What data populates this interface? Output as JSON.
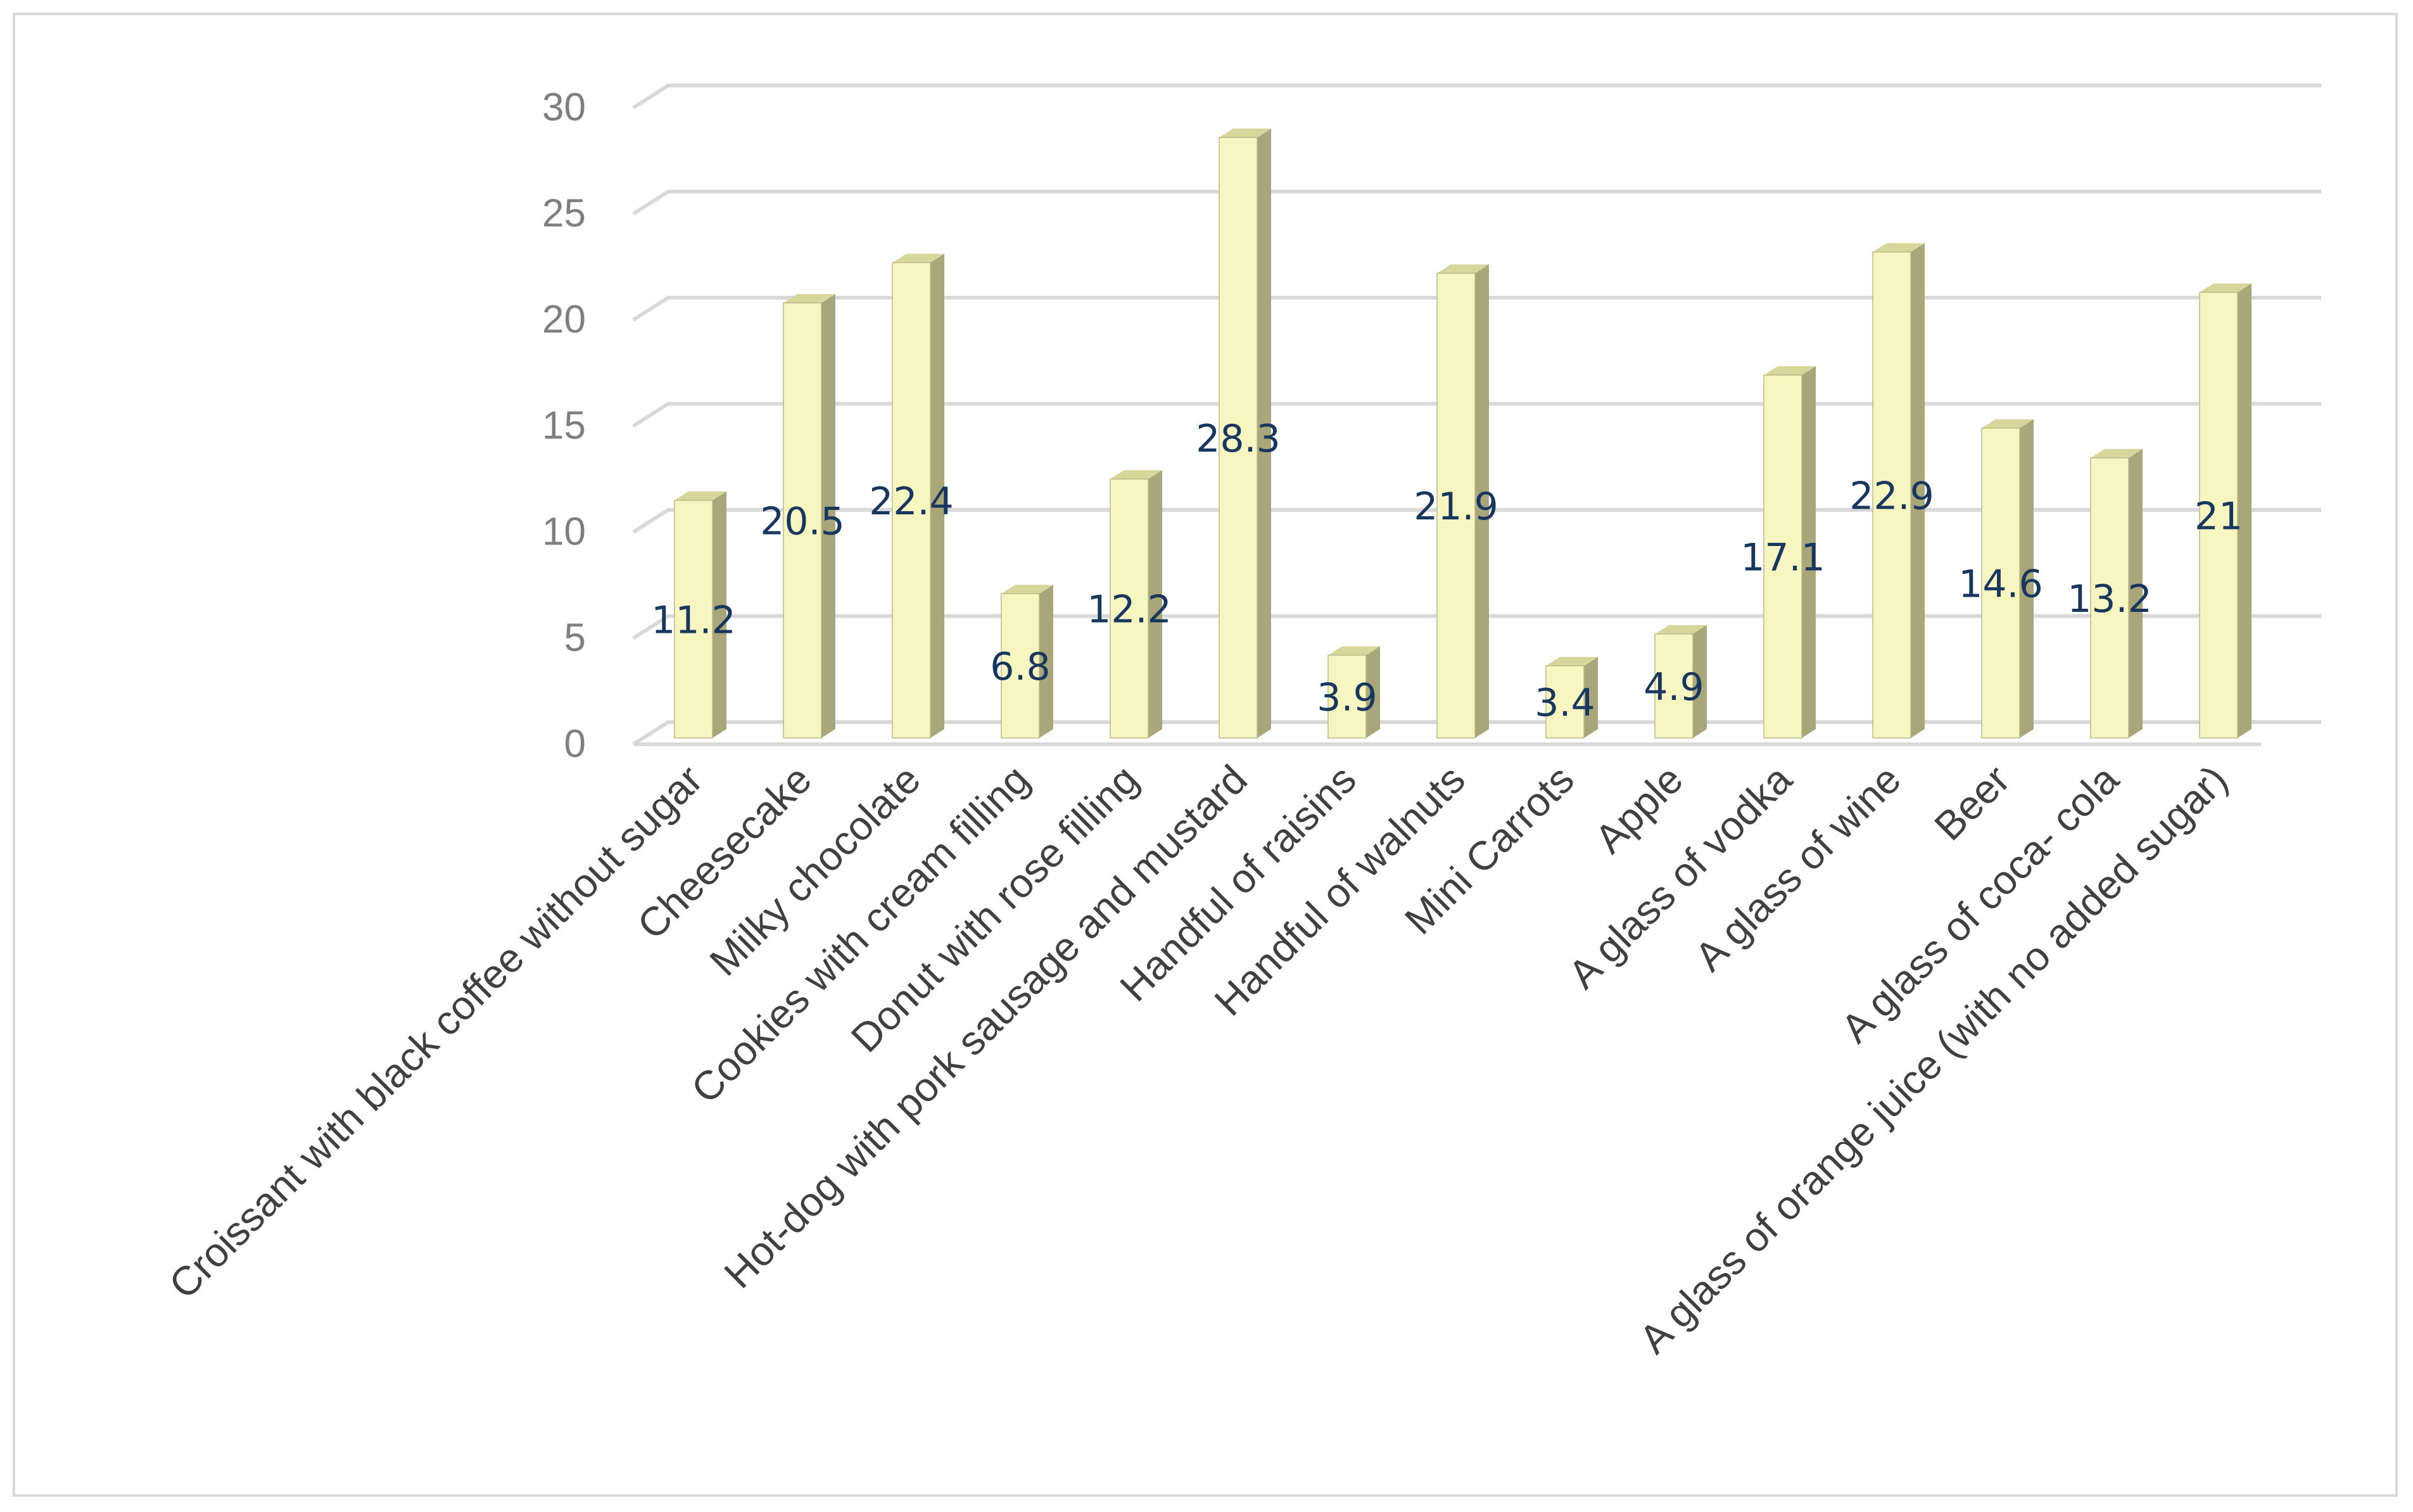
{
  "chart_data": {
    "type": "bar",
    "categories": [
      "Croissant with black coffee without sugar",
      "Cheesecake",
      "Milky chocolate",
      "Cookies with cream filling",
      "Donut with rose filling",
      "Hot-dog with pork sausage and mustard",
      "Handful of raisins",
      "Handful of walnuts",
      "Mini Carrots",
      "Apple",
      "A glass of vodka",
      "A glass of wine",
      "Beer",
      "A glass of coca- cola",
      "A glass of orange juice (with no added sugar)"
    ],
    "values": [
      11.2,
      20.5,
      22.4,
      6.8,
      12.2,
      28.3,
      3.9,
      21.9,
      3.4,
      4.9,
      17.1,
      22.9,
      14.6,
      13.2,
      21
    ],
    "data_labels": [
      "11.2",
      "20.5",
      "22.4",
      "6.8",
      "12.2",
      "28.3",
      "3.9",
      "21.9",
      "3.4",
      "4.9",
      "17.1",
      "22.9",
      "14.6",
      "13.2",
      "21"
    ],
    "yticks": [
      "0",
      "5",
      "10",
      "15",
      "20",
      "25",
      "30"
    ],
    "ylim": [
      0,
      30
    ],
    "title": "",
    "xlabel": "",
    "ylabel": "",
    "grid": true,
    "style": "3d-column",
    "colors": {
      "bar_front": "#f8f6c0",
      "bar_side": "#a9a67a",
      "bar_top": "#d9d69c",
      "bar_edge": "#bdb98a",
      "gridline": "#d9d9d9",
      "tick_text": "#7f7f7f",
      "category_text": "#404040",
      "data_label_text": "#17375e"
    }
  }
}
